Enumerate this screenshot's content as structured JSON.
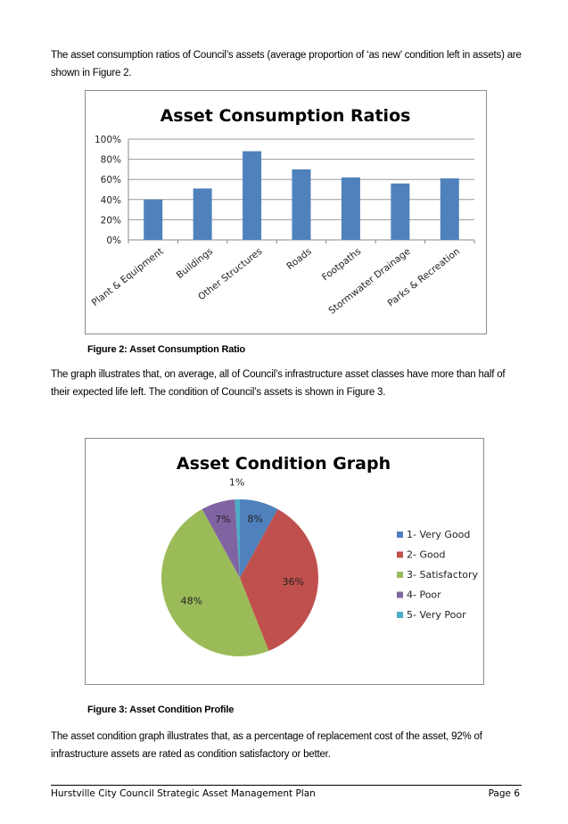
{
  "paragraphs": {
    "intro": "The asset consumption ratios of Council’s assets (average proportion of ‘as new’ condition left in assets) are shown in Figure 2.",
    "middle": "The graph illustrates that, on average, all of Council’s infrastructure asset classes have more than half of their expected life left.  The condition of Council’s assets is shown in Figure 3.",
    "closing": "The asset condition graph illustrates that, as a percentage of replacement cost of the asset, 92% of infrastructure assets are rated as condition satisfactory or better."
  },
  "captions": {
    "figure2": "Figure 2: Asset Consumption Ratio",
    "figure3": "Figure 3: Asset Condition Profile"
  },
  "footer": {
    "title": "Hurstville City Council Strategic Asset Management Plan",
    "page": "Page 6"
  },
  "chart_data": [
    {
      "type": "bar",
      "title": "Asset Consumption Ratios",
      "categories": [
        "Plant & Equipment",
        "Buildings",
        "Other Structures",
        "Roads",
        "Footpaths",
        "Stormwater Drainage",
        "Parks & Recreation"
      ],
      "values": [
        40,
        51,
        88,
        70,
        62,
        56,
        61
      ],
      "yticks": [
        "0%",
        "20%",
        "40%",
        "60%",
        "80%",
        "100%"
      ],
      "ylim": [
        0,
        100
      ],
      "xlabel": "",
      "ylabel": "",
      "grid": true,
      "color": "#4f81bd"
    },
    {
      "type": "pie",
      "title": "Asset Condition Graph",
      "labels": [
        "1- Very Good",
        "2- Good",
        "3- Satisfactory",
        "4- Poor",
        "5- Very Poor"
      ],
      "values": [
        8,
        36,
        48,
        7,
        1
      ],
      "data_labels": [
        "8%",
        "36%",
        "48%",
        "7%",
        "1%"
      ],
      "colors": [
        "#4f81bd",
        "#c0504d",
        "#9bbb59",
        "#8064a2",
        "#4bacc6"
      ],
      "legend": "right"
    }
  ]
}
